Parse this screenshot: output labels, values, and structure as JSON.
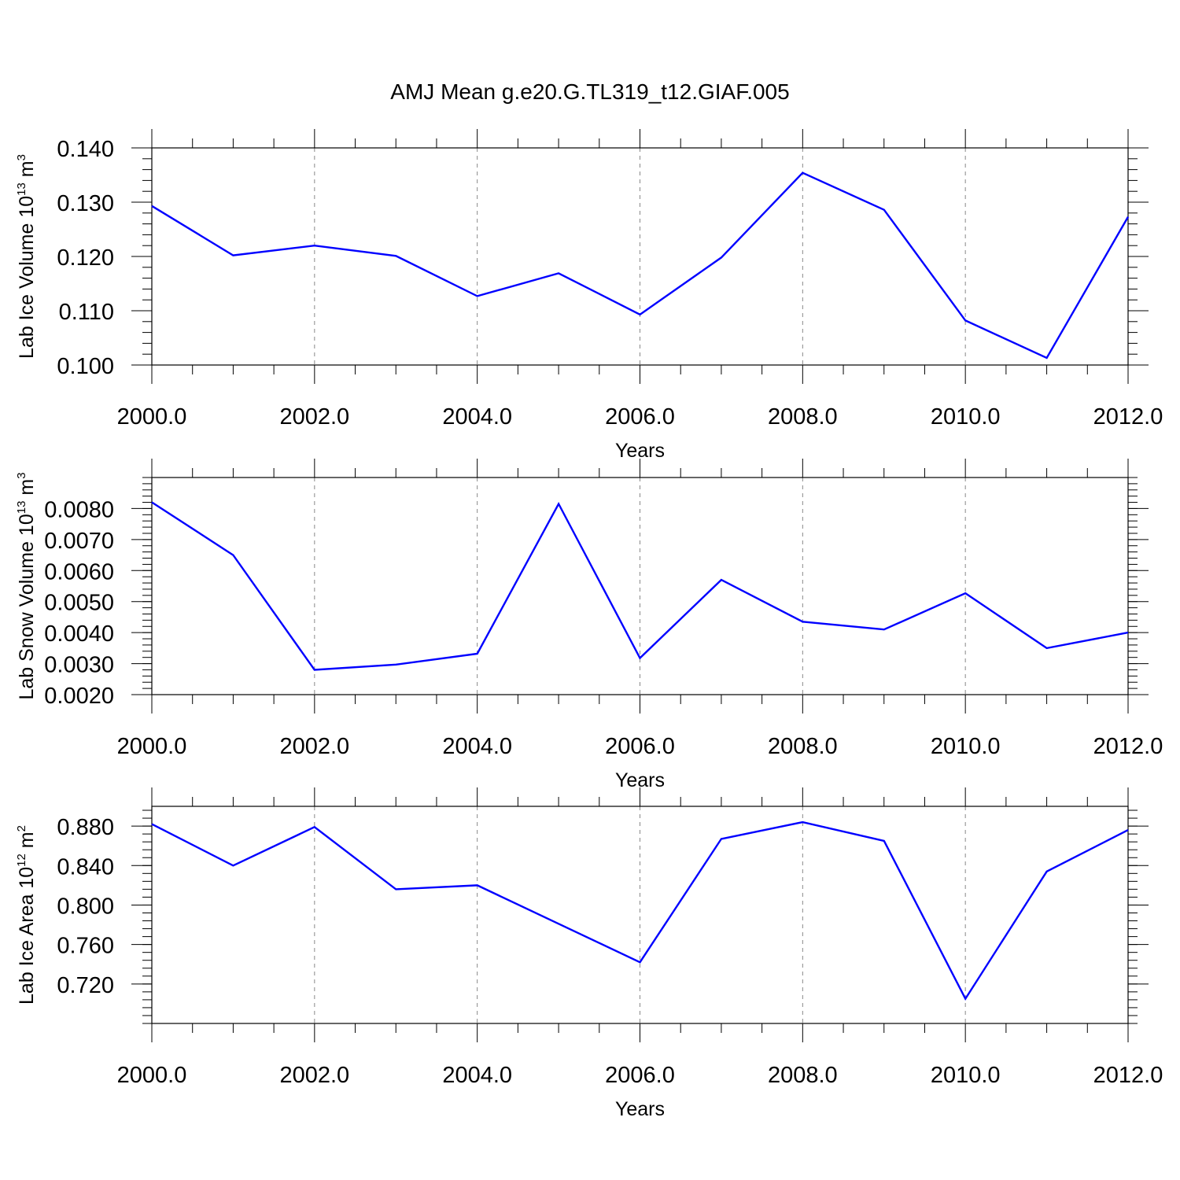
{
  "title": "AMJ Mean g.e20.G.TL319_t12.GIAF.005",
  "colors": {
    "series": "#0000ff",
    "axes": "#000000",
    "grid": "#888888"
  },
  "chart_data": [
    {
      "type": "line",
      "xlabel": "Years",
      "ylabel": {
        "text": "Lab Ice Volume 10",
        "exp": "13",
        "unit": " m",
        "unit_exp": "3"
      },
      "xlim": [
        2000,
        2012
      ],
      "ylim": [
        0.1,
        0.14
      ],
      "xticks": [
        2000,
        2002,
        2004,
        2006,
        2008,
        2010,
        2012
      ],
      "xtick_labels": [
        "2000.0",
        "2002.0",
        "2004.0",
        "2006.0",
        "2008.0",
        "2010.0",
        "2012.0"
      ],
      "yticks": [
        0.1,
        0.11,
        0.12,
        0.13,
        0.14
      ],
      "ytick_labels": [
        "0.100",
        "0.110",
        "0.120",
        "0.130",
        "0.140"
      ],
      "y_minor_step": 0.002,
      "grid": "vertical dashed at major x ticks",
      "x": [
        2000,
        2001,
        2002,
        2003,
        2004,
        2005,
        2006,
        2007,
        2008,
        2009,
        2010,
        2011,
        2012
      ],
      "values": [
        0.1293,
        0.1202,
        0.122,
        0.1201,
        0.1127,
        0.1169,
        0.1093,
        0.1198,
        0.1354,
        0.1286,
        0.1082,
        0.1013,
        0.1273
      ]
    },
    {
      "type": "line",
      "xlabel": "Years",
      "ylabel": {
        "text": "Lab Snow Volume 10",
        "exp": "13",
        "unit": " m",
        "unit_exp": "3"
      },
      "xlim": [
        2000,
        2012
      ],
      "ylim": [
        0.002,
        0.009
      ],
      "xticks": [
        2000,
        2002,
        2004,
        2006,
        2008,
        2010,
        2012
      ],
      "xtick_labels": [
        "2000.0",
        "2002.0",
        "2004.0",
        "2006.0",
        "2008.0",
        "2010.0",
        "2012.0"
      ],
      "yticks": [
        0.002,
        0.003,
        0.004,
        0.005,
        0.006,
        0.007,
        0.008
      ],
      "ytick_labels": [
        "0.0020",
        "0.0030",
        "0.0040",
        "0.0050",
        "0.0060",
        "0.0070",
        "0.0080"
      ],
      "y_minor_step": 0.0002,
      "grid": "vertical dashed at major x ticks",
      "x": [
        2000,
        2001,
        2002,
        2003,
        2004,
        2005,
        2006,
        2007,
        2008,
        2009,
        2010,
        2011,
        2012
      ],
      "values": [
        0.0082,
        0.0065,
        0.0028,
        0.00297,
        0.00332,
        0.00815,
        0.00318,
        0.0057,
        0.00435,
        0.0041,
        0.00527,
        0.0035,
        0.004
      ]
    },
    {
      "type": "line",
      "xlabel": "Years",
      "ylabel": {
        "text": "Lab Ice Area 10",
        "exp": "12",
        "unit": " m",
        "unit_exp": "2"
      },
      "xlim": [
        2000,
        2012
      ],
      "ylim": [
        0.68,
        0.9
      ],
      "xticks": [
        2000,
        2002,
        2004,
        2006,
        2008,
        2010,
        2012
      ],
      "xtick_labels": [
        "2000.0",
        "2002.0",
        "2004.0",
        "2006.0",
        "2008.0",
        "2010.0",
        "2012.0"
      ],
      "yticks": [
        0.72,
        0.76,
        0.8,
        0.84,
        0.88
      ],
      "ytick_labels": [
        "0.720",
        "0.760",
        "0.800",
        "0.840",
        "0.880"
      ],
      "y_minor_step": 0.008,
      "grid": "vertical dashed at major x ticks",
      "x": [
        2000,
        2001,
        2002,
        2003,
        2004,
        2005,
        2006,
        2007,
        2008,
        2009,
        2010,
        2011,
        2012
      ],
      "values": [
        0.882,
        0.84,
        0.879,
        0.816,
        0.82,
        0.781,
        0.742,
        0.867,
        0.884,
        0.865,
        0.705,
        0.834,
        0.876
      ]
    }
  ]
}
